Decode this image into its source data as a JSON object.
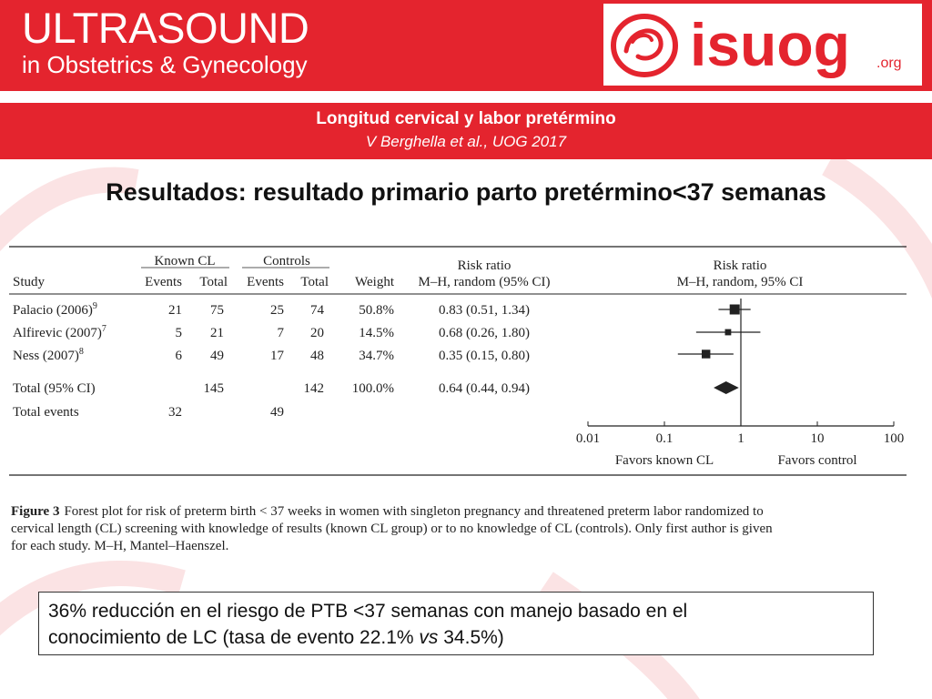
{
  "journal": {
    "title": "ULTRASOUND",
    "subtitle": "in Obstetrics & Gynecology",
    "logo_text": "isuog",
    "logo_suffix": ".org"
  },
  "article": {
    "title": "Longitud cervical y labor pretérmino",
    "citation": "V Berghella et al., UOG 2017"
  },
  "slide_heading": "Resultados: resultado primario parto pretérmino<37 semanas",
  "table": {
    "group_headers": {
      "known_cl": "Known CL",
      "controls": "Controls",
      "risk_ratio": "Risk ratio",
      "risk_ratio_plot": "Risk ratio"
    },
    "columns": {
      "study": "Study",
      "events_known": "Events",
      "total_known": "Total",
      "events_ctrl": "Events",
      "total_ctrl": "Total",
      "weight": "Weight",
      "rr_method": "M–H, random (95% CI)",
      "plot_method": "M–H, random, 95% CI"
    },
    "rows": [
      {
        "study": "Palacio (2006)",
        "ref": "9",
        "events_known": "21",
        "total_known": "75",
        "events_ctrl": "25",
        "total_ctrl": "74",
        "weight": "50.8%",
        "rr_text": "0.83 (0.51, 1.34)"
      },
      {
        "study": "Alfirevic (2007)",
        "ref": "7",
        "events_known": "5",
        "total_known": "21",
        "events_ctrl": "7",
        "total_ctrl": "20",
        "weight": "14.5%",
        "rr_text": "0.68 (0.26, 1.80)"
      },
      {
        "study": "Ness (2007)",
        "ref": "8",
        "events_known": "6",
        "total_known": "49",
        "events_ctrl": "17",
        "total_ctrl": "48",
        "weight": "34.7%",
        "rr_text": "0.35 (0.15, 0.80)"
      }
    ],
    "total_row": {
      "label": "Total (95% CI)",
      "total_known": "145",
      "total_ctrl": "142",
      "weight": "100.0%",
      "rr_text": "0.64 (0.44, 0.94)"
    },
    "events_row": {
      "label": "Total events",
      "events_known": "32",
      "events_ctrl": "49"
    },
    "axis": {
      "ticks": [
        "0.01",
        "0.1",
        "1",
        "10",
        "100"
      ],
      "left_label": "Favors known CL",
      "right_label": "Favors control"
    }
  },
  "chart_data": {
    "type": "forest",
    "x_scale": "log",
    "xlim": [
      0.01,
      100
    ],
    "reference_line": 1,
    "studies": [
      {
        "name": "Palacio (2006)",
        "rr": 0.83,
        "ci": [
          0.51,
          1.34
        ],
        "weight": 50.8
      },
      {
        "name": "Alfirevic (2007)",
        "rr": 0.68,
        "ci": [
          0.26,
          1.8
        ],
        "weight": 14.5
      },
      {
        "name": "Ness (2007)",
        "rr": 0.35,
        "ci": [
          0.15,
          0.8
        ],
        "weight": 34.7
      }
    ],
    "pooled": {
      "name": "Total (95% CI)",
      "rr": 0.64,
      "ci": [
        0.44,
        0.94
      ]
    }
  },
  "caption": {
    "label": "Figure 3",
    "lines": [
      "Forest plot for risk of preterm birth < 37 weeks in women with singleton pregnancy and threatened preterm labor randomized to",
      "cervical length (CL) screening with knowledge of results (known CL group) or to no knowledge of CL (controls). Only first author is given",
      "for each study. M–H, Mantel–Haenszel."
    ]
  },
  "summary": {
    "line1": "36% reducción en el riesgo de PTB <37 semanas con manejo basado en el",
    "line2_pre": "conocimiento de LC (tasa de evento 22.1% ",
    "line2_vs": "vs",
    "line2_post": " 34.5%)"
  },
  "colors": {
    "brand_red": "#e4242e",
    "text_dark": "#222222"
  }
}
